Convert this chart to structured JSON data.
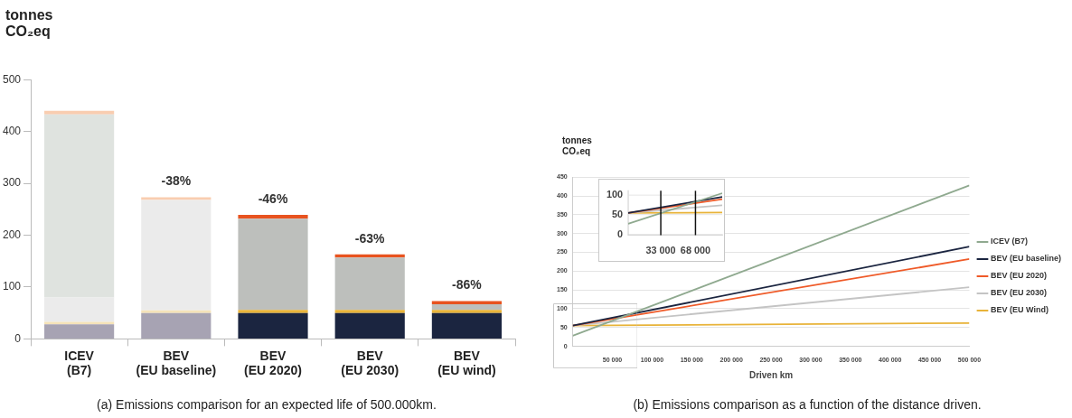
{
  "chart_data": [
    {
      "type": "bar",
      "title": "(a) Emissions comparison for an expected life of 500.000km.",
      "ylabel": "tonnes CO₂eq",
      "stacked": true,
      "categories": [
        "ICEV (B7)",
        "BEV (EU baseline)",
        "BEV (EU 2020)",
        "BEV (EU 2030)",
        "BEV (EU wind)"
      ],
      "series": [
        {
          "values": [
            28,
            50,
            50,
            50,
            50
          ],
          "colors": [
            "#a7a3b3",
            "#a7a3b3",
            "#1b2540",
            "#1b2540",
            "#1b2540"
          ]
        },
        {
          "values": [
            5,
            5,
            6,
            6,
            6
          ],
          "colors": [
            "#f5e3b8",
            "#f5e3b8",
            "#e8b339",
            "#e8b339",
            "#e8b339"
          ]
        },
        {
          "values": [
            47,
            null,
            null,
            null,
            null
          ],
          "colors": [
            "#ebebeb",
            "#ebebeb",
            "#ebebeb",
            "#ebebeb",
            "#ebebeb"
          ]
        },
        {
          "values": [
            353,
            213,
            176,
            101,
            11
          ],
          "colors": [
            "#dfe3df",
            "#ebebeb",
            "#bdbfbc",
            "#bdbfbc",
            "#bdbfbc"
          ]
        },
        {
          "values": [
            7,
            5,
            7,
            6,
            6
          ],
          "colors": [
            "#f9cdb0",
            "#f9cdb0",
            "#e8531f",
            "#e8531f",
            "#e8531f"
          ]
        }
      ],
      "ylim": [
        0,
        500
      ],
      "yticks": [
        0,
        100,
        200,
        300,
        400,
        500
      ],
      "annotations": [
        {
          "text": "-38%",
          "x": "BEV (EU baseline)",
          "y": 273
        },
        {
          "text": "-46%",
          "x": "BEV (EU 2020)",
          "y": 239
        },
        {
          "text": "-63%",
          "x": "BEV (EU 2030)",
          "y": 163
        },
        {
          "text": "-86%",
          "x": "BEV (EU wind)",
          "y": 73
        }
      ]
    },
    {
      "type": "line",
      "title": "(b) Emissions comparison as a function of the distance driven.",
      "ylabel": "tonnes CO₂eq",
      "xlabel": "Driven km",
      "legend": "right",
      "grid": "y",
      "series": [
        {
          "name": "ICEV (B7)",
          "color": "#8fa98f",
          "x": [
            0,
            500000
          ],
          "values": [
            28,
            428
          ]
        },
        {
          "name": "BEV (EU baseline)",
          "color": "#1b2540",
          "x": [
            0,
            500000
          ],
          "values": [
            55,
            265
          ]
        },
        {
          "name": "BEV (EU 2020)",
          "color": "#ef5a28",
          "x": [
            0,
            500000
          ],
          "values": [
            55,
            232
          ]
        },
        {
          "name": "BEV (EU 2030)",
          "color": "#c4c4c4",
          "x": [
            0,
            500000
          ],
          "values": [
            55,
            157
          ]
        },
        {
          "name": "BEV (EU Wind)",
          "color": "#e8b339",
          "x": [
            0,
            500000
          ],
          "values": [
            55,
            62
          ]
        }
      ],
      "xlim": [
        0,
        500000
      ],
      "xticks": [
        {
          "value": 50000,
          "label": "50 000"
        },
        {
          "value": 100000,
          "label": "100 000"
        },
        {
          "value": 150000,
          "label": "150 000"
        },
        {
          "value": 200000,
          "label": "200 000"
        },
        {
          "value": 250000,
          "label": "250 000"
        },
        {
          "value": 300000,
          "label": "300 000"
        },
        {
          "value": 350000,
          "label": "350 000"
        },
        {
          "value": 400000,
          "label": "400 000"
        },
        {
          "value": 450000,
          "label": "450 000"
        },
        {
          "value": 500000,
          "label": "500 000"
        }
      ],
      "ylim": [
        0,
        450
      ],
      "yticks": [
        0,
        50,
        100,
        150,
        200,
        250,
        300,
        350,
        400,
        450
      ]
    },
    {
      "type": "line",
      "grid": "y",
      "series": [
        {
          "color": "#8fa98f",
          "x": [
            0,
            95000
          ],
          "values": [
            28,
            104
          ]
        },
        {
          "color": "#1b2540",
          "x": [
            0,
            95000
          ],
          "values": [
            55,
            95
          ]
        },
        {
          "color": "#ef5a28",
          "x": [
            0,
            95000
          ],
          "values": [
            55,
            89
          ]
        },
        {
          "color": "#c4c4c4",
          "x": [
            0,
            95000
          ],
          "values": [
            55,
            74
          ]
        },
        {
          "color": "#e8b339",
          "x": [
            0,
            95000
          ],
          "values": [
            55,
            56
          ]
        }
      ],
      "xlim": [
        0,
        95000
      ],
      "xticks": [
        {
          "value": 33000,
          "label": "33 000"
        },
        {
          "value": 68000,
          "label": "68 000"
        }
      ],
      "ylim": [
        0,
        110
      ],
      "yticks": [
        0,
        50,
        100
      ],
      "ref_lines": [
        {
          "axis": "x",
          "value": 33000,
          "color": "#111111"
        },
        {
          "axis": "x",
          "value": 68000,
          "color": "#111111"
        }
      ]
    }
  ]
}
